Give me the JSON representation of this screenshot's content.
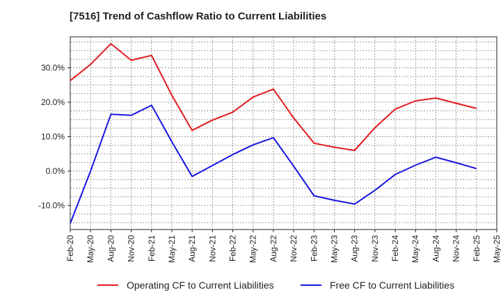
{
  "chart_data": {
    "type": "line",
    "title": "[7516]  Trend of Cashflow Ratio to Current Liabilities",
    "xlabel": "",
    "ylabel": "",
    "x_tick_labels": [
      "Feb-20",
      "May-20",
      "Aug-20",
      "Nov-20",
      "Feb-21",
      "May-21",
      "Aug-21",
      "Nov-21",
      "Feb-22",
      "May-22",
      "Aug-22",
      "Nov-22",
      "Feb-23",
      "May-23",
      "Aug-23",
      "Nov-23",
      "Feb-24",
      "May-24",
      "Aug-24",
      "Nov-24",
      "Feb-25",
      "May-25"
    ],
    "y_tick_labels": [
      "-10.0%",
      "0.0%",
      "10.0%",
      "20.0%",
      "30.0%"
    ],
    "y_tick_values": [
      -10,
      0,
      10,
      20,
      30
    ],
    "ylim": [
      -17,
      39
    ],
    "grid": true,
    "legend_position": "bottom",
    "series": [
      {
        "name": "Operating CF to Current Liabilities",
        "color": "#e31a1c",
        "values": [
          26.3,
          31.0,
          37.0,
          32.2,
          33.6,
          22.0,
          11.8,
          14.8,
          17.1,
          21.5,
          23.8,
          15.4,
          8.1,
          6.9,
          6.0,
          12.6,
          18.0,
          20.4,
          21.2,
          19.7,
          18.2,
          null
        ]
      },
      {
        "name": "Free CF to Current Liabilities",
        "color": "#1515e0",
        "values": [
          -15.2,
          0.0,
          16.5,
          16.2,
          19.1,
          8.5,
          -1.6,
          1.6,
          4.8,
          7.6,
          9.7,
          1.4,
          -7.2,
          -8.5,
          -9.6,
          -5.6,
          -1.0,
          1.7,
          4.0,
          2.4,
          0.7,
          null
        ]
      }
    ]
  }
}
